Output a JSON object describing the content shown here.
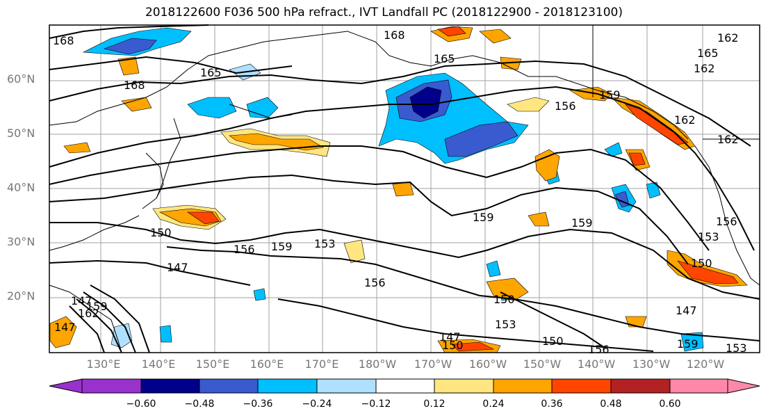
{
  "title": "2018122600 F036 500 hPa refract., IVT Landfall PC (2018122900 - 2018123100)",
  "lat_labels": [
    "60°N",
    "50°N",
    "40°N",
    "30°N",
    "20°N"
  ],
  "lon_labels": [
    "130°E",
    "140°E",
    "150°E",
    "160°E",
    "170°E",
    "180°W",
    "170°W",
    "160°W",
    "150°W",
    "140°W",
    "130°W",
    "120°W"
  ],
  "contour_labels": [
    "168",
    "168",
    "165",
    "168",
    "165",
    "165",
    "162",
    "156",
    "159",
    "162",
    "162",
    "162",
    "159",
    "159",
    "150",
    "156",
    "159",
    "153",
    "147",
    "156",
    "150",
    "153",
    "150",
    "147",
    "150",
    "156",
    "159",
    "153",
    "156",
    "153",
    "147",
    "162",
    "159",
    "147",
    "147",
    "150"
  ],
  "colorbar": {
    "tick_labels": [
      "−0.60",
      "−0.48",
      "−0.36",
      "−0.24",
      "−0.12",
      "0.12",
      "0.24",
      "0.36",
      "0.48",
      "0.60"
    ],
    "colors": [
      "#9932cc",
      "#00008b",
      "#3a5bcf",
      "#00bfff",
      "#b0e0ff",
      "#ffffff",
      "#ffe680",
      "#ffa500",
      "#ff4500",
      "#b22222",
      "#ff88aa"
    ]
  }
}
